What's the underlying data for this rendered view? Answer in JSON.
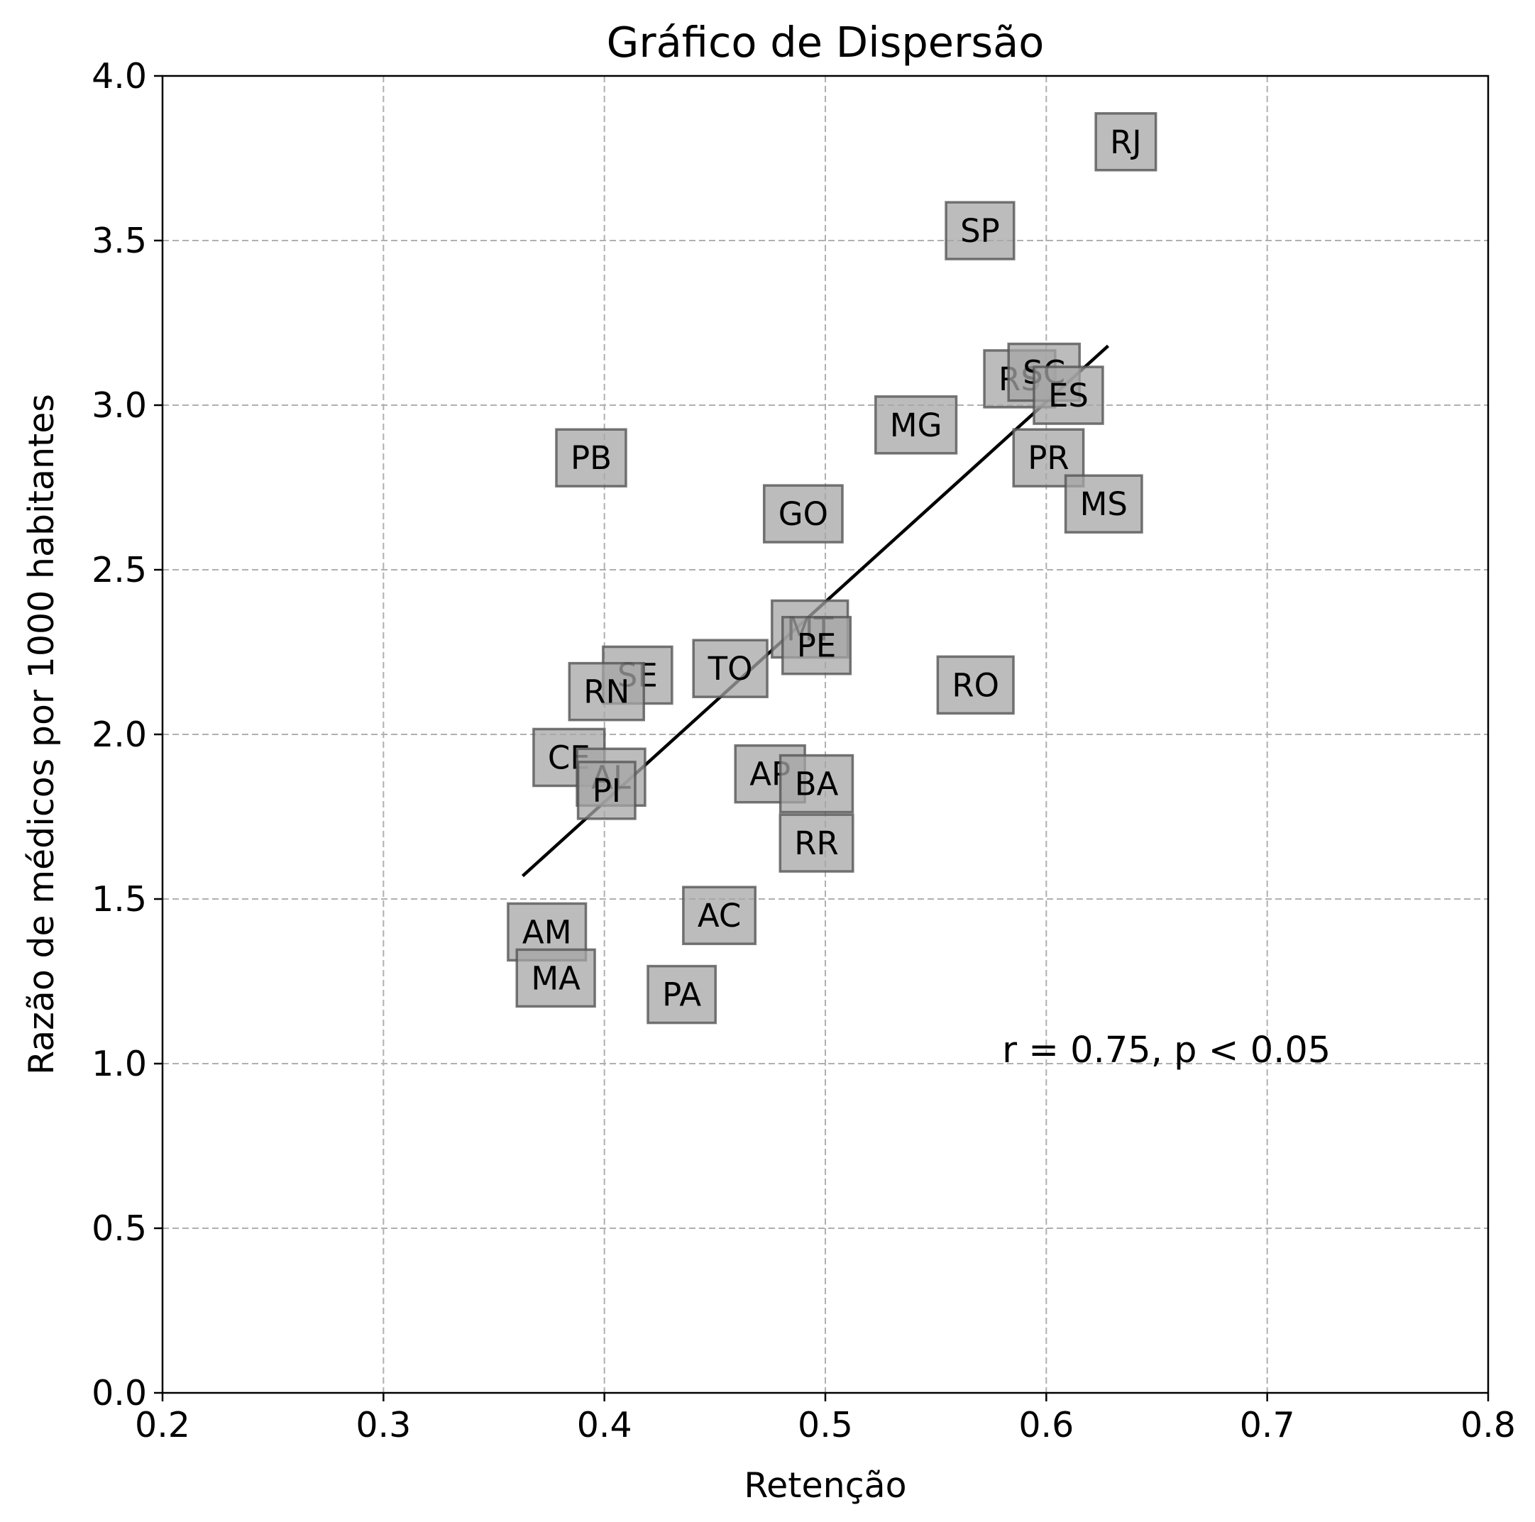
{
  "chart_data": {
    "type": "scatter",
    "title": "Gráfico de Dispersão",
    "xlabel": "Retenção",
    "ylabel": "Razão de médicos por 1000 habitantes",
    "xlim": [
      0.2,
      0.8
    ],
    "ylim": [
      0.0,
      4.0
    ],
    "xticks": [
      "0.2",
      "0.3",
      "0.4",
      "0.5",
      "0.6",
      "0.7",
      "0.8"
    ],
    "yticks": [
      "0.0",
      "0.5",
      "1.0",
      "1.5",
      "2.0",
      "2.5",
      "3.0",
      "3.5",
      "4.0"
    ],
    "grid": true,
    "points": [
      {
        "label": "RJ",
        "x": 0.636,
        "y": 3.8
      },
      {
        "label": "SP",
        "x": 0.57,
        "y": 3.53
      },
      {
        "label": "RS",
        "x": 0.588,
        "y": 3.08
      },
      {
        "label": "SC",
        "x": 0.599,
        "y": 3.1
      },
      {
        "label": "ES",
        "x": 0.61,
        "y": 3.03
      },
      {
        "label": "MG",
        "x": 0.541,
        "y": 2.94
      },
      {
        "label": "PR",
        "x": 0.601,
        "y": 2.84
      },
      {
        "label": "MS",
        "x": 0.626,
        "y": 2.7
      },
      {
        "label": "PB",
        "x": 0.394,
        "y": 2.84
      },
      {
        "label": "GO",
        "x": 0.49,
        "y": 2.67
      },
      {
        "label": "MT",
        "x": 0.493,
        "y": 2.32
      },
      {
        "label": "PE",
        "x": 0.496,
        "y": 2.27
      },
      {
        "label": "TO",
        "x": 0.457,
        "y": 2.2
      },
      {
        "label": "RO",
        "x": 0.568,
        "y": 2.15
      },
      {
        "label": "SE",
        "x": 0.415,
        "y": 2.18
      },
      {
        "label": "RN",
        "x": 0.401,
        "y": 2.13
      },
      {
        "label": "CE",
        "x": 0.384,
        "y": 1.93
      },
      {
        "label": "AL",
        "x": 0.403,
        "y": 1.87
      },
      {
        "label": "PI",
        "x": 0.401,
        "y": 1.83
      },
      {
        "label": "AP",
        "x": 0.475,
        "y": 1.88
      },
      {
        "label": "BA",
        "x": 0.496,
        "y": 1.85
      },
      {
        "label": "RR",
        "x": 0.496,
        "y": 1.67
      },
      {
        "label": "AC",
        "x": 0.452,
        "y": 1.45
      },
      {
        "label": "AM",
        "x": 0.374,
        "y": 1.4
      },
      {
        "label": "MA",
        "x": 0.378,
        "y": 1.26
      },
      {
        "label": "PA",
        "x": 0.435,
        "y": 1.21
      }
    ],
    "trendline": {
      "x": [
        0.363,
        0.628
      ],
      "y": [
        1.57,
        3.18
      ]
    },
    "annotation": {
      "text": "r = 0.75, p < 0.05",
      "x": 0.58,
      "y": 1.0
    }
  }
}
